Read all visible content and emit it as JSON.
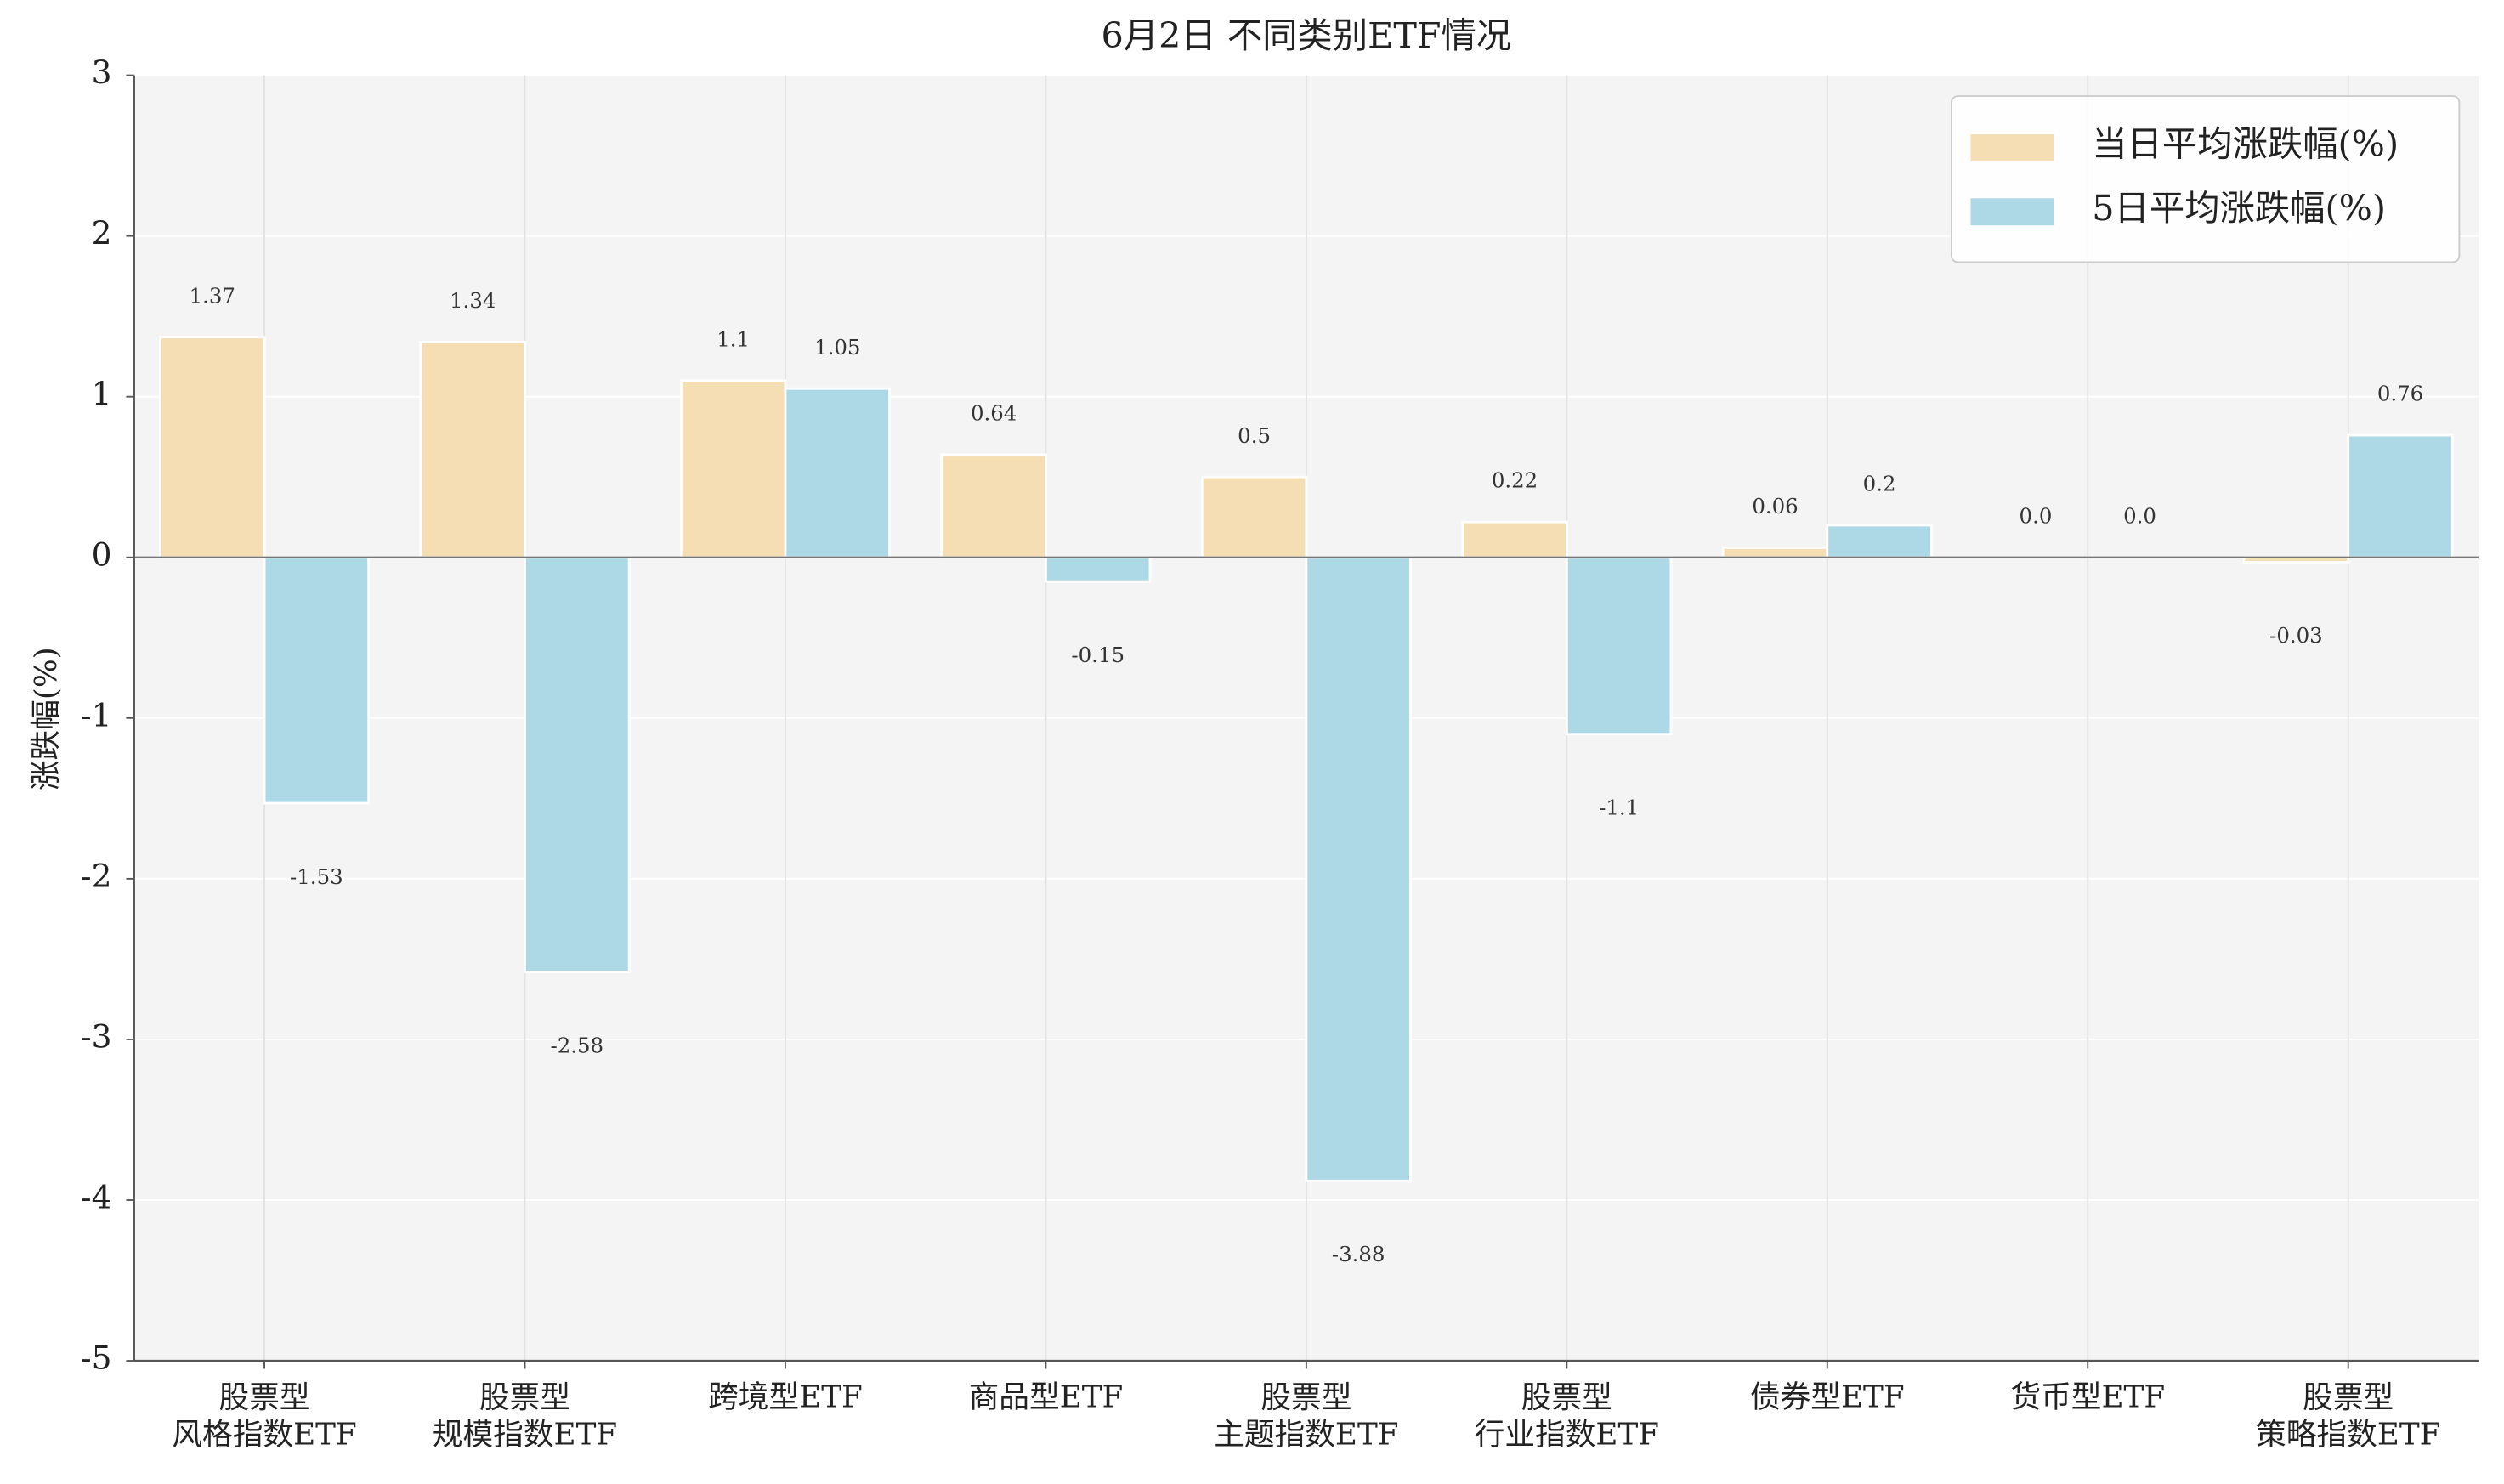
{
  "chart_data": {
    "type": "bar",
    "title": "6月2日 不同类别ETF情况",
    "y_label": "涨跌幅(%)",
    "categories": [
      [
        "股票型",
        "风格指数ETF"
      ],
      [
        "股票型",
        "规模指数ETF"
      ],
      "跨境型ETF",
      "商品型ETF",
      [
        "股票型",
        "主题指数ETF"
      ],
      [
        "股票型",
        "行业指数ETF"
      ],
      "债券型ETF",
      "货币型ETF",
      [
        "股票型",
        "策略指数ETF"
      ]
    ],
    "series": [
      {
        "name": "当日平均涨跌幅(%)",
        "color": "#f5deb3",
        "values": [
          1.37,
          1.34,
          1.1,
          0.64,
          0.5,
          0.22,
          0.06,
          0.0,
          -0.03
        ],
        "value_labels": [
          "1.37",
          "1.34",
          "1.1",
          "0.64",
          "0.5",
          "0.22",
          "0.06",
          "0.0",
          "-0.03"
        ]
      },
      {
        "name": "5日平均涨跌幅(%)",
        "color": "#add8e6",
        "values": [
          -1.53,
          -2.58,
          1.05,
          -0.15,
          -3.88,
          -1.1,
          0.2,
          0.0,
          0.76
        ],
        "value_labels": [
          "-1.53",
          "-2.58",
          "1.05",
          "-0.15",
          "-3.88",
          "-1.1",
          "0.2",
          "0.0",
          "0.76"
        ]
      }
    ],
    "ylim": [
      -5,
      3
    ],
    "yticks": [
      -5,
      -4,
      -3,
      -2,
      -1,
      0,
      1,
      2,
      3
    ],
    "grid": true,
    "legend": "upper right"
  }
}
